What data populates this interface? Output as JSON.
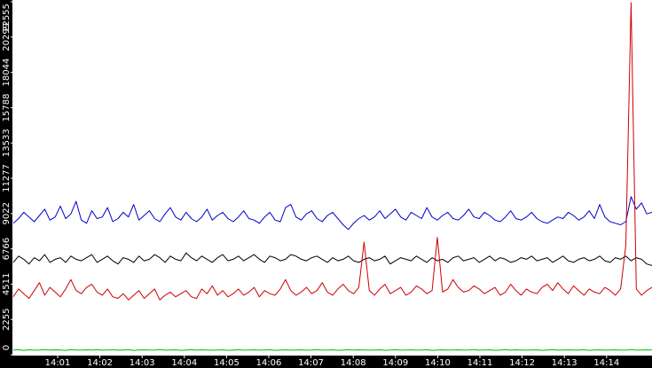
{
  "chart_data": {
    "type": "line",
    "title": "",
    "xlabel": "",
    "ylabel": "",
    "x_ticks": [
      "14:01",
      "14:02",
      "14:03",
      "14:04",
      "14:05",
      "14:06",
      "14:07",
      "14:08",
      "14:09",
      "14:10",
      "14:11",
      "14:12",
      "14:13",
      "14:14"
    ],
    "y_ticks": [
      "0",
      "2255",
      "4511",
      "6766",
      "9022",
      "11277",
      "13533",
      "15788",
      "18044",
      "20299",
      "22555"
    ],
    "ylim": [
      0,
      22555
    ],
    "xlim": [
      "14:00:38",
      "14:14:58"
    ],
    "grid": false,
    "legend": "none",
    "colors": {
      "axis_band": "#000000",
      "tick_text": "#ffffff",
      "background": "#ffffff"
    },
    "series": [
      {
        "color": "#0000cc",
        "values": [
          8400,
          8700,
          9100,
          8800,
          8500,
          8900,
          9300,
          8600,
          8800,
          9500,
          8700,
          9000,
          9800,
          8600,
          8400,
          9200,
          8700,
          8800,
          9400,
          8500,
          8700,
          9100,
          8800,
          9600,
          8600,
          8900,
          9200,
          8700,
          8500,
          9000,
          9400,
          8800,
          8600,
          9100,
          8700,
          8500,
          8800,
          9300,
          8600,
          8900,
          9100,
          8700,
          8500,
          8800,
          9200,
          8700,
          8600,
          8400,
          8800,
          9100,
          8600,
          8500,
          9400,
          9600,
          8800,
          8600,
          9000,
          9200,
          8700,
          8500,
          8900,
          9100,
          8700,
          8300,
          8000,
          8400,
          8700,
          8900,
          8600,
          8800,
          9200,
          8700,
          9000,
          9300,
          8800,
          8600,
          9100,
          8900,
          8700,
          9400,
          8800,
          8600,
          8900,
          9100,
          8700,
          8600,
          8900,
          9300,
          8800,
          8700,
          9100,
          8900,
          8600,
          8500,
          8800,
          9200,
          8700,
          8600,
          8800,
          9100,
          8700,
          8500,
          8400,
          8600,
          8800,
          8700,
          9100,
          8900,
          8600,
          8800,
          9200,
          8700,
          9600,
          8800,
          8500,
          8400,
          8300,
          8500,
          10100,
          9300,
          9700,
          9000,
          9100
        ]
      },
      {
        "color": "#000000",
        "values": [
          5900,
          6300,
          6100,
          5800,
          6200,
          6000,
          6400,
          5900,
          6100,
          6200,
          5900,
          6300,
          6100,
          6000,
          6200,
          6400,
          5900,
          6100,
          6300,
          6000,
          5800,
          6200,
          6100,
          5900,
          6300,
          6000,
          6100,
          6400,
          6200,
          5900,
          6300,
          6100,
          6000,
          6500,
          6200,
          6000,
          6300,
          6100,
          5900,
          6200,
          6400,
          6000,
          6100,
          6300,
          6000,
          6200,
          6400,
          6100,
          5900,
          6300,
          6200,
          6000,
          6100,
          6400,
          6300,
          6100,
          6000,
          6200,
          6300,
          6100,
          5900,
          6200,
          6000,
          6100,
          6300,
          6000,
          5900,
          6100,
          6200,
          6000,
          6100,
          6300,
          5800,
          6000,
          6200,
          6100,
          6000,
          6300,
          6100,
          5900,
          6200,
          6000,
          6100,
          5900,
          6200,
          6300,
          6000,
          6100,
          6200,
          5900,
          6100,
          6300,
          6000,
          6200,
          6100,
          5900,
          6000,
          6200,
          6100,
          6300,
          6000,
          6100,
          6200,
          5900,
          6100,
          6300,
          6000,
          5900,
          6100,
          6200,
          6000,
          6100,
          6300,
          6000,
          5900,
          6200,
          6100,
          6300,
          6000,
          6200,
          6100,
          5800,
          5700
        ]
      },
      {
        "color": "#cc0000",
        "values": [
          3700,
          4200,
          3900,
          3600,
          4100,
          4600,
          3800,
          4300,
          4000,
          3700,
          4200,
          4800,
          4100,
          3900,
          4300,
          4500,
          4000,
          3800,
          4200,
          3700,
          3600,
          3900,
          3500,
          3800,
          4100,
          3600,
          3900,
          4200,
          3500,
          3800,
          4000,
          3700,
          3900,
          4100,
          3700,
          3600,
          4200,
          3900,
          4400,
          3800,
          4100,
          3700,
          3900,
          4200,
          3800,
          4000,
          4300,
          3700,
          4100,
          3900,
          3800,
          4200,
          4800,
          4100,
          3800,
          4000,
          4300,
          3900,
          4100,
          4600,
          4000,
          3800,
          4200,
          4500,
          4100,
          3900,
          4300,
          7200,
          4100,
          3800,
          4200,
          4500,
          3900,
          4100,
          4300,
          3800,
          4000,
          4400,
          4200,
          3900,
          4100,
          7500,
          4000,
          4200,
          4800,
          4300,
          4000,
          4100,
          4400,
          4200,
          3900,
          4100,
          4300,
          3800,
          4000,
          4500,
          4100,
          3800,
          4200,
          4000,
          3900,
          4300,
          4500,
          4100,
          4600,
          4200,
          3900,
          4400,
          4100,
          3800,
          4200,
          4000,
          3900,
          4300,
          4100,
          3800,
          4200,
          7000,
          22500,
          4200,
          3800,
          4100,
          4300
        ]
      },
      {
        "color": "#00bb00",
        "values": [
          300,
          320,
          280,
          310,
          290,
          300,
          330,
          290,
          310,
          300,
          280,
          320,
          300,
          290,
          310,
          300,
          320,
          290,
          300,
          310,
          290,
          300,
          320,
          280,
          300,
          310,
          290,
          300,
          330,
          290,
          300,
          310,
          280,
          300,
          320,
          290,
          310,
          300,
          290,
          300,
          310,
          280,
          300,
          320,
          290,
          300,
          310,
          290,
          300,
          320,
          280,
          300,
          310,
          290,
          300,
          310,
          290,
          300,
          330,
          290,
          300,
          310,
          280,
          300,
          320,
          290,
          310,
          300,
          290,
          300,
          310,
          280,
          300,
          320,
          290,
          300,
          310,
          290,
          300,
          320,
          280,
          300,
          310,
          290,
          300,
          310,
          290,
          300,
          330,
          290,
          300,
          310,
          280,
          300,
          320,
          290,
          310,
          300,
          290,
          300,
          310,
          280,
          300,
          320,
          290,
          300,
          310,
          290,
          300,
          320,
          280,
          300,
          310,
          290,
          300,
          310,
          290,
          300,
          330,
          290,
          300,
          310,
          300
        ]
      }
    ]
  }
}
